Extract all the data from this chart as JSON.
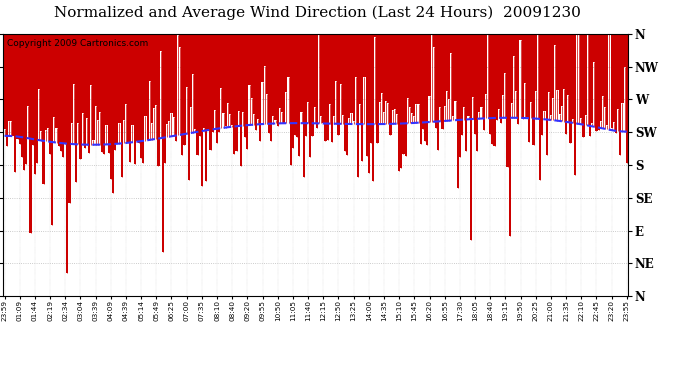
{
  "title": "Normalized and Average Wind Direction (Last 24 Hours)  20091230",
  "copyright": "Copyright 2009 Cartronics.com",
  "ytick_labels_top_to_bottom": [
    "N",
    "NW",
    "W",
    "SW",
    "S",
    "SE",
    "E",
    "NE",
    "N"
  ],
  "ytick_values": [
    0,
    45,
    90,
    135,
    180,
    225,
    270,
    315,
    360
  ],
  "ylim": [
    0,
    360
  ],
  "bar_color": "#cc0000",
  "avg_line_color": "#3333ff",
  "background_color": "#ffffff",
  "grid_color": "#bbbbbb",
  "title_fontsize": 11,
  "copyright_fontsize": 6.5,
  "num_points": 288,
  "xtick_labels": [
    "23:59",
    "01:09",
    "01:44",
    "02:19",
    "02:34",
    "03:04",
    "03:39",
    "04:09",
    "04:39",
    "05:14",
    "05:49",
    "06:25",
    "07:00",
    "07:35",
    "08:10",
    "08:40",
    "09:20",
    "09:55",
    "10:50",
    "11:05",
    "11:40",
    "12:15",
    "12:50",
    "13:25",
    "14:00",
    "14:35",
    "15:10",
    "15:45",
    "16:20",
    "16:55",
    "17:30",
    "18:05",
    "18:40",
    "19:15",
    "19:50",
    "20:25",
    "21:00",
    "21:35",
    "22:10",
    "22:45",
    "23:20",
    "23:55"
  ]
}
